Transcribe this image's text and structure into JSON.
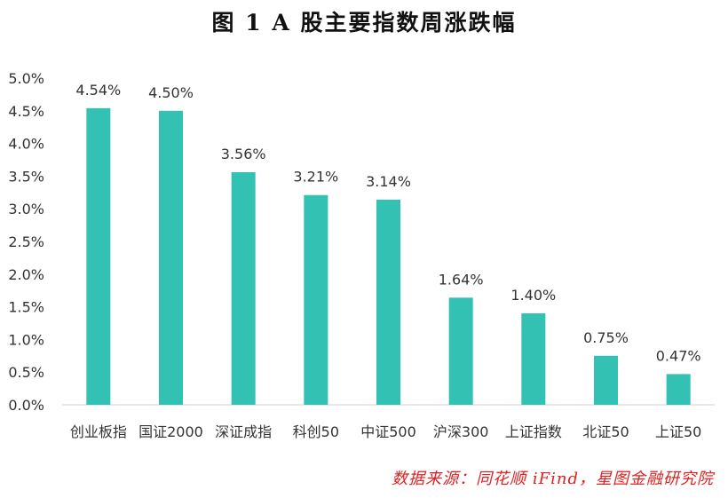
{
  "title": "图 1   A 股主要指数周涨跌幅",
  "source": "数据来源：同花顺 iFind，星图金融研究院",
  "colors": {
    "bar": "#33C1B3",
    "source": "#E02020",
    "text": "#333333",
    "axis": "#D0D0D0"
  },
  "chart_data": {
    "type": "bar",
    "title": "图 1   A 股主要指数周涨跌幅",
    "xlabel": "",
    "ylabel": "",
    "ylim": [
      0,
      5.0
    ],
    "y_ticks": [
      "0.0%",
      "0.5%",
      "1.0%",
      "1.5%",
      "2.0%",
      "2.5%",
      "3.0%",
      "3.5%",
      "4.0%",
      "4.5%",
      "5.0%"
    ],
    "grid": false,
    "categories": [
      "创业板指",
      "国证2000",
      "深证成指",
      "科创50",
      "中证500",
      "沪深300",
      "上证指数",
      "北证50",
      "上证50"
    ],
    "values": [
      4.54,
      4.5,
      3.56,
      3.21,
      3.14,
      1.64,
      1.4,
      0.75,
      0.47
    ],
    "value_labels": [
      "4.54%",
      "4.50%",
      "3.56%",
      "3.21%",
      "3.14%",
      "1.64%",
      "1.40%",
      "0.75%",
      "0.47%"
    ]
  }
}
